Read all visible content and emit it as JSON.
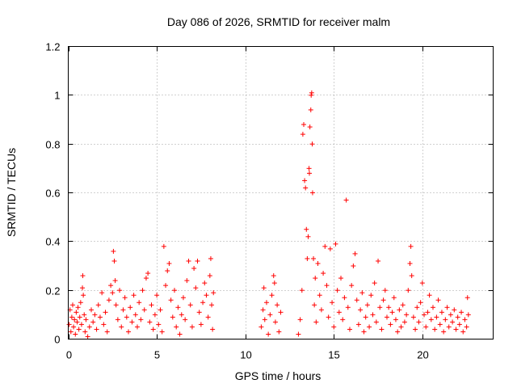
{
  "chart_data": {
    "type": "scatter",
    "title": "Day 086 of 2026, SRMTID for receiver malm",
    "xlabel": "GPS time / hours",
    "ylabel": "SRMTID / TECUs",
    "xlim": [
      0,
      24
    ],
    "ylim": [
      0,
      1.2
    ],
    "grid": true,
    "marker": "+",
    "marker_color": "#ff0000",
    "xticks": [
      0,
      5,
      10,
      15,
      20
    ],
    "xtick_labels": [
      "0",
      "5",
      "10",
      "15",
      "20"
    ],
    "yticks": [
      0,
      0.2,
      0.4,
      0.6,
      0.8,
      1.0,
      1.2
    ],
    "ytick_labels": [
      "0",
      "0.2",
      "0.4",
      "0.6",
      "0.8",
      "1",
      "1.2"
    ],
    "series": [
      {
        "name": "SRMTID",
        "color": "#ff0000",
        "points": [
          [
            0.05,
            0.06
          ],
          [
            0.1,
            0.12
          ],
          [
            0.15,
            0.03
          ],
          [
            0.2,
            0.09
          ],
          [
            0.25,
            0.14
          ],
          [
            0.3,
            0.05
          ],
          [
            0.35,
            0.08
          ],
          [
            0.4,
            0.02
          ],
          [
            0.45,
            0.11
          ],
          [
            0.5,
            0.07
          ],
          [
            0.55,
            0.13
          ],
          [
            0.6,
            0.04
          ],
          [
            0.65,
            0.09
          ],
          [
            0.7,
            0.15
          ],
          [
            0.75,
            0.06
          ],
          [
            0.8,
            0.21
          ],
          [
            0.82,
            0.26
          ],
          [
            0.85,
            0.18
          ],
          [
            0.9,
            0.1
          ],
          [
            0.95,
            0.03
          ],
          [
            1.0,
            0.08
          ],
          [
            1.1,
            0.01
          ],
          [
            1.2,
            0.05
          ],
          [
            1.3,
            0.12
          ],
          [
            1.4,
            0.07
          ],
          [
            1.5,
            0.1
          ],
          [
            1.6,
            0.04
          ],
          [
            1.7,
            0.14
          ],
          [
            1.8,
            0.09
          ],
          [
            1.9,
            0.19
          ],
          [
            2.0,
            0.06
          ],
          [
            2.1,
            0.11
          ],
          [
            2.2,
            0.03
          ],
          [
            2.3,
            0.16
          ],
          [
            2.4,
            0.22
          ],
          [
            2.5,
            0.19
          ],
          [
            2.55,
            0.36
          ],
          [
            2.6,
            0.32
          ],
          [
            2.65,
            0.24
          ],
          [
            2.7,
            0.14
          ],
          [
            2.8,
            0.08
          ],
          [
            2.9,
            0.2
          ],
          [
            3.0,
            0.05
          ],
          [
            3.1,
            0.12
          ],
          [
            3.2,
            0.17
          ],
          [
            3.3,
            0.09
          ],
          [
            3.4,
            0.03
          ],
          [
            3.5,
            0.13
          ],
          [
            3.6,
            0.07
          ],
          [
            3.7,
            0.18
          ],
          [
            3.8,
            0.1
          ],
          [
            3.9,
            0.05
          ],
          [
            4.0,
            0.15
          ],
          [
            4.1,
            0.08
          ],
          [
            4.2,
            0.2
          ],
          [
            4.3,
            0.12
          ],
          [
            4.4,
            0.25
          ],
          [
            4.5,
            0.27
          ],
          [
            4.6,
            0.07
          ],
          [
            4.7,
            0.14
          ],
          [
            4.8,
            0.04
          ],
          [
            4.9,
            0.1
          ],
          [
            5.0,
            0.18
          ],
          [
            5.1,
            0.06
          ],
          [
            5.2,
            0.12
          ],
          [
            5.3,
            0.03
          ],
          [
            5.4,
            0.38
          ],
          [
            5.5,
            0.22
          ],
          [
            5.6,
            0.28
          ],
          [
            5.7,
            0.31
          ],
          [
            5.8,
            0.16
          ],
          [
            5.9,
            0.09
          ],
          [
            6.0,
            0.2
          ],
          [
            6.1,
            0.05
          ],
          [
            6.2,
            0.13
          ],
          [
            6.3,
            0.02
          ],
          [
            6.4,
            0.1
          ],
          [
            6.5,
            0.17
          ],
          [
            6.6,
            0.08
          ],
          [
            6.7,
            0.24
          ],
          [
            6.8,
            0.32
          ],
          [
            6.9,
            0.14
          ],
          [
            7.0,
            0.05
          ],
          [
            7.1,
            0.29
          ],
          [
            7.2,
            0.21
          ],
          [
            7.3,
            0.32
          ],
          [
            7.4,
            0.11
          ],
          [
            7.5,
            0.06
          ],
          [
            7.6,
            0.15
          ],
          [
            7.7,
            0.23
          ],
          [
            7.8,
            0.18
          ],
          [
            7.9,
            0.09
          ],
          [
            8.0,
            0.26
          ],
          [
            8.05,
            0.33
          ],
          [
            8.1,
            0.14
          ],
          [
            8.15,
            0.04
          ],
          [
            8.2,
            0.19
          ],
          [
            10.9,
            0.05
          ],
          [
            11.0,
            0.12
          ],
          [
            11.05,
            0.21
          ],
          [
            11.1,
            0.08
          ],
          [
            11.2,
            0.15
          ],
          [
            11.3,
            0.02
          ],
          [
            11.4,
            0.1
          ],
          [
            11.5,
            0.18
          ],
          [
            11.6,
            0.26
          ],
          [
            11.65,
            0.23
          ],
          [
            11.7,
            0.07
          ],
          [
            11.8,
            0.14
          ],
          [
            11.9,
            0.03
          ],
          [
            12.0,
            0.11
          ],
          [
            13.0,
            0.02
          ],
          [
            13.1,
            0.08
          ],
          [
            13.2,
            0.2
          ],
          [
            13.25,
            0.84
          ],
          [
            13.3,
            0.88
          ],
          [
            13.35,
            0.65
          ],
          [
            13.4,
            0.62
          ],
          [
            13.45,
            0.45
          ],
          [
            13.5,
            0.33
          ],
          [
            13.55,
            0.42
          ],
          [
            13.6,
            0.7
          ],
          [
            13.62,
            0.68
          ],
          [
            13.65,
            0.87
          ],
          [
            13.7,
            0.94
          ],
          [
            13.72,
            1.0
          ],
          [
            13.75,
            1.01
          ],
          [
            13.78,
            0.8
          ],
          [
            13.8,
            0.6
          ],
          [
            13.85,
            0.33
          ],
          [
            13.9,
            0.14
          ],
          [
            13.95,
            0.25
          ],
          [
            14.0,
            0.07
          ],
          [
            14.1,
            0.31
          ],
          [
            14.2,
            0.18
          ],
          [
            14.3,
            0.12
          ],
          [
            14.4,
            0.27
          ],
          [
            14.5,
            0.38
          ],
          [
            14.6,
            0.22
          ],
          [
            14.7,
            0.09
          ],
          [
            14.8,
            0.37
          ],
          [
            14.9,
            0.15
          ],
          [
            15.0,
            0.05
          ],
          [
            15.1,
            0.39
          ],
          [
            15.2,
            0.2
          ],
          [
            15.3,
            0.11
          ],
          [
            15.4,
            0.25
          ],
          [
            15.5,
            0.08
          ],
          [
            15.6,
            0.17
          ],
          [
            15.7,
            0.57
          ],
          [
            15.8,
            0.13
          ],
          [
            15.9,
            0.04
          ],
          [
            16.0,
            0.22
          ],
          [
            16.1,
            0.3
          ],
          [
            16.2,
            0.35
          ],
          [
            16.3,
            0.16
          ],
          [
            16.4,
            0.06
          ],
          [
            16.5,
            0.12
          ],
          [
            16.6,
            0.19
          ],
          [
            16.7,
            0.03
          ],
          [
            16.8,
            0.09
          ],
          [
            16.9,
            0.14
          ],
          [
            17.0,
            0.05
          ],
          [
            17.1,
            0.18
          ],
          [
            17.2,
            0.1
          ],
          [
            17.3,
            0.23
          ],
          [
            17.4,
            0.07
          ],
          [
            17.5,
            0.32
          ],
          [
            17.6,
            0.13
          ],
          [
            17.7,
            0.04
          ],
          [
            17.8,
            0.16
          ],
          [
            17.9,
            0.2
          ],
          [
            18.0,
            0.09
          ],
          [
            18.1,
            0.13
          ],
          [
            18.2,
            0.06
          ],
          [
            18.3,
            0.11
          ],
          [
            18.4,
            0.17
          ],
          [
            18.5,
            0.08
          ],
          [
            18.6,
            0.03
          ],
          [
            18.7,
            0.12
          ],
          [
            18.8,
            0.05
          ],
          [
            18.9,
            0.14
          ],
          [
            19.0,
            0.07
          ],
          [
            19.1,
            0.1
          ],
          [
            19.2,
            0.2
          ],
          [
            19.3,
            0.31
          ],
          [
            19.35,
            0.38
          ],
          [
            19.4,
            0.26
          ],
          [
            19.5,
            0.09
          ],
          [
            19.6,
            0.04
          ],
          [
            19.7,
            0.13
          ],
          [
            19.8,
            0.07
          ],
          [
            19.9,
            0.15
          ],
          [
            20.0,
            0.23
          ],
          [
            20.1,
            0.1
          ],
          [
            20.2,
            0.05
          ],
          [
            20.3,
            0.11
          ],
          [
            20.4,
            0.18
          ],
          [
            20.5,
            0.08
          ],
          [
            20.6,
            0.13
          ],
          [
            20.7,
            0.04
          ],
          [
            20.8,
            0.09
          ],
          [
            20.9,
            0.16
          ],
          [
            21.0,
            0.06
          ],
          [
            21.1,
            0.11
          ],
          [
            21.2,
            0.03
          ],
          [
            21.3,
            0.08
          ],
          [
            21.4,
            0.13
          ],
          [
            21.5,
            0.05
          ],
          [
            21.6,
            0.1
          ],
          [
            21.7,
            0.07
          ],
          [
            21.8,
            0.12
          ],
          [
            21.9,
            0.04
          ],
          [
            22.0,
            0.09
          ],
          [
            22.1,
            0.06
          ],
          [
            22.2,
            0.11
          ],
          [
            22.3,
            0.03
          ],
          [
            22.4,
            0.08
          ],
          [
            22.5,
            0.05
          ],
          [
            22.55,
            0.17
          ],
          [
            22.6,
            0.1
          ]
        ]
      }
    ]
  }
}
